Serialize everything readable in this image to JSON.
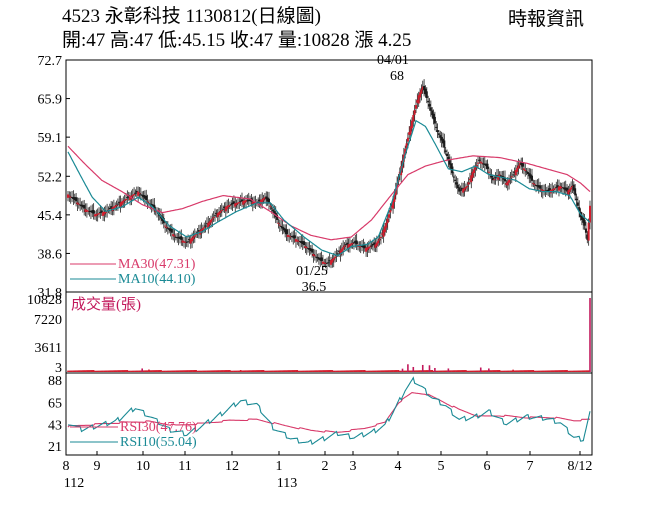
{
  "header": {
    "title": "4523 永彰科技 1130812(日線圖)",
    "ohlc": "開:47 高:47 低:45.15 收:47 量:10828 漲 4.25",
    "source": "時報資訊"
  },
  "chart_data": [
    {
      "type": "candlestick",
      "panel": "price",
      "y_ticks": [
        72.7,
        65.9,
        59.1,
        52.2,
        45.4,
        38.6,
        31.8
      ],
      "ylim": [
        31.8,
        72.7
      ],
      "legend": [
        {
          "label": "MA30(47.31)",
          "color": "#d83a6a"
        },
        {
          "label": "MA10(44.10)",
          "color": "#1a8a95"
        }
      ],
      "annotations": [
        {
          "date_label": "04/01",
          "value_label": "68",
          "value": 68,
          "position": "top"
        },
        {
          "date_label": "01/25",
          "value_label": "36.5",
          "value": 36.5,
          "position": "bottom"
        }
      ],
      "series": [
        {
          "name": "MA30",
          "color": "#d83a6a",
          "values": [
            [
              0,
              57.5
            ],
            [
              12,
              54.5
            ],
            [
              25,
              51.5
            ],
            [
              40,
              49.5
            ],
            [
              55,
              47.2
            ],
            [
              70,
              45.8
            ],
            [
              85,
              46.5
            ],
            [
              100,
              47.8
            ],
            [
              115,
              48.8
            ],
            [
              135,
              48.2
            ],
            [
              150,
              46.0
            ],
            [
              165,
              43.5
            ],
            [
              180,
              41.8
            ],
            [
              195,
              41.0
            ],
            [
              210,
              41.5
            ],
            [
              225,
              44.5
            ],
            [
              240,
              49.0
            ],
            [
              252,
              52.5
            ],
            [
              265,
              54.0
            ],
            [
              280,
              55.0
            ],
            [
              300,
              55.8
            ],
            [
              320,
              55.5
            ],
            [
              340,
              54.5
            ],
            [
              355,
              53.5
            ],
            [
              370,
              52.5
            ],
            [
              380,
              51.0
            ],
            [
              387,
              49.5
            ]
          ]
        },
        {
          "name": "MA10",
          "color": "#1a8a95",
          "values": [
            [
              0,
              56.5
            ],
            [
              10,
              52.0
            ],
            [
              18,
              48.5
            ],
            [
              28,
              46.0
            ],
            [
              40,
              46.8
            ],
            [
              52,
              48.5
            ],
            [
              62,
              47.0
            ],
            [
              75,
              43.5
            ],
            [
              88,
              41.5
            ],
            [
              100,
              42.5
            ],
            [
              110,
              44.0
            ],
            [
              125,
              46.0
            ],
            [
              140,
              47.5
            ],
            [
              150,
              47.5
            ],
            [
              160,
              44.5
            ],
            [
              175,
              41.5
            ],
            [
              188,
              39.2
            ],
            [
              200,
              38.2
            ],
            [
              210,
              39.8
            ],
            [
              222,
              40.2
            ],
            [
              230,
              41.5
            ],
            [
              240,
              47.5
            ],
            [
              250,
              56.0
            ],
            [
              258,
              62.0
            ],
            [
              265,
              61.0
            ],
            [
              272,
              58.0
            ],
            [
              282,
              53.5
            ],
            [
              292,
              53.0
            ],
            [
              302,
              54.0
            ],
            [
              312,
              52.5
            ],
            [
              322,
              52.0
            ],
            [
              332,
              51.5
            ],
            [
              342,
              50.0
            ],
            [
              352,
              49.5
            ],
            [
              362,
              49.5
            ],
            [
              372,
              48.8
            ],
            [
              380,
              45.5
            ],
            [
              387,
              44.1
            ]
          ]
        }
      ]
    },
    {
      "type": "bar",
      "panel": "volume",
      "y_ticks": [
        10828,
        7220,
        3611,
        3
      ],
      "ylim": [
        3,
        10828
      ],
      "series_label": "成交量(張)",
      "spikes": [
        [
          55,
          380
        ],
        [
          60,
          220
        ],
        [
          128,
          150
        ],
        [
          196,
          140
        ],
        [
          248,
          350
        ],
        [
          252,
          1000
        ],
        [
          256,
          600
        ],
        [
          263,
          900
        ],
        [
          268,
          850
        ],
        [
          272,
          450
        ],
        [
          282,
          380
        ],
        [
          306,
          520
        ],
        [
          312,
          380
        ],
        [
          330,
          200
        ],
        [
          387,
          10828
        ]
      ]
    },
    {
      "type": "line",
      "panel": "rsi",
      "y_ticks": [
        88,
        65,
        43,
        21
      ],
      "ylim": [
        12,
        95
      ],
      "legend": [
        {
          "label": "RSI30(47.76)",
          "color": "#d83a6a"
        },
        {
          "label": "RSI10(55.04)",
          "color": "#1a8a95"
        }
      ],
      "series": [
        {
          "name": "RSI30",
          "color": "#d83a6a",
          "values": [
            [
              0,
              41
            ],
            [
              20,
              43
            ],
            [
              40,
              45
            ],
            [
              60,
              46
            ],
            [
              80,
              42
            ],
            [
              100,
              44
            ],
            [
              120,
              47
            ],
            [
              140,
              48
            ],
            [
              160,
              42
            ],
            [
              180,
              37
            ],
            [
              200,
              35
            ],
            [
              220,
              39
            ],
            [
              235,
              45
            ],
            [
              245,
              65
            ],
            [
              255,
              75
            ],
            [
              265,
              74
            ],
            [
              275,
              68
            ],
            [
              290,
              58
            ],
            [
              305,
              51
            ],
            [
              320,
              52
            ],
            [
              340,
              50
            ],
            [
              360,
              50
            ],
            [
              375,
              47
            ],
            [
              387,
              48
            ]
          ]
        },
        {
          "name": "RSI10",
          "color": "#1a8a95",
          "values": [
            [
              0,
              45
            ],
            [
              10,
              38
            ],
            [
              20,
              41
            ],
            [
              35,
              46
            ],
            [
              50,
              60
            ],
            [
              62,
              50
            ],
            [
              75,
              38
            ],
            [
              88,
              33
            ],
            [
              100,
              42
            ],
            [
              115,
              55
            ],
            [
              128,
              67
            ],
            [
              140,
              63
            ],
            [
              152,
              40
            ],
            [
              165,
              29
            ],
            [
              178,
              24
            ],
            [
              188,
              28
            ],
            [
              200,
              34
            ],
            [
              212,
              30
            ],
            [
              225,
              35
            ],
            [
              235,
              42
            ],
            [
              242,
              58
            ],
            [
              250,
              78
            ],
            [
              256,
              88
            ],
            [
              263,
              80
            ],
            [
              270,
              70
            ],
            [
              280,
              62
            ],
            [
              290,
              48
            ],
            [
              300,
              50
            ],
            [
              312,
              56
            ],
            [
              325,
              44
            ],
            [
              340,
              51
            ],
            [
              355,
              49
            ],
            [
              365,
              45
            ],
            [
              375,
              30
            ],
            [
              382,
              28
            ],
            [
              387,
              55
            ]
          ]
        }
      ]
    },
    {
      "type": "x_axis",
      "x_ticks": [
        "8",
        "9",
        "10",
        "11",
        "12",
        "1",
        "2",
        "3",
        "4",
        "5",
        "6",
        "7",
        "8/12"
      ],
      "year_labels": [
        "112",
        "113"
      ]
    }
  ]
}
